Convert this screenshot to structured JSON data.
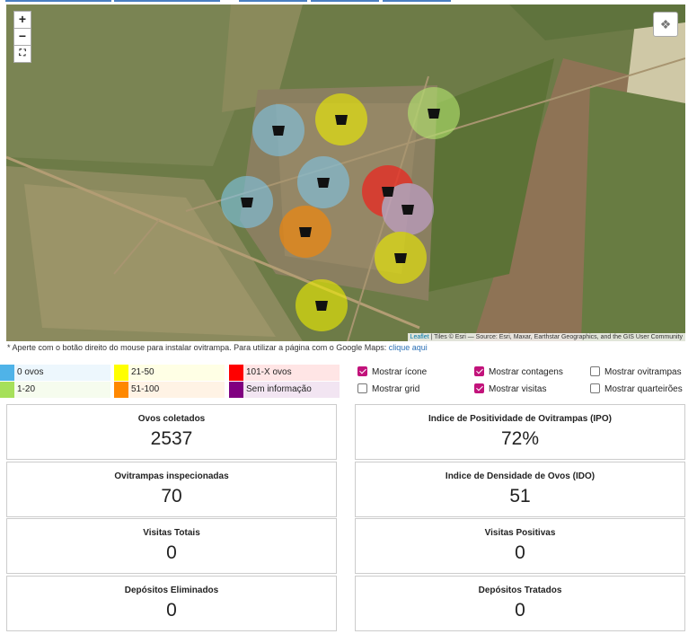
{
  "map": {
    "zoom_in": "+",
    "zoom_out": "−",
    "attribution": {
      "link": "Leaflet",
      "text": "| Tiles © Esri — Source: Esri, Maxar, Earthstar Geographics, and the GIS User Community"
    }
  },
  "note": {
    "text": "* Aperte com o botão direito do mouse para instalar ovitrampa. Para utilizar a página com o Google Maps:",
    "link": "clique aqui"
  },
  "legend": [
    {
      "label": "0 ovos",
      "color": "#4fb3e8"
    },
    {
      "label": "1-20",
      "color": "#a6e05a"
    },
    {
      "label": "21-50",
      "color": "#ffff00"
    },
    {
      "label": "51-100",
      "color": "#ff8800"
    },
    {
      "label": "101-X ovos",
      "color": "#ff0000"
    },
    {
      "label": "Sem informação",
      "color": "#800080"
    }
  ],
  "options": [
    {
      "label": "Mostrar ícone",
      "checked": true
    },
    {
      "label": "Mostrar contagens",
      "checked": true
    },
    {
      "label": "Mostrar ovitrampas",
      "checked": false
    },
    {
      "label": "Mostrar grid",
      "checked": false
    },
    {
      "label": "Mostrar visitas",
      "checked": true
    },
    {
      "label": "Mostrar quarteirões",
      "checked": false
    }
  ],
  "stats": [
    {
      "label": "Ovos coletados",
      "value": "2537"
    },
    {
      "label": "Indice de Positividade de Ovitrampas (IPO)",
      "value": "72%"
    },
    {
      "label": "Ovitrampas inspecionadas",
      "value": "70"
    },
    {
      "label": "Indice de Densidade de Ovos (IDO)",
      "value": "51"
    },
    {
      "label": "Visitas Totais",
      "value": "0"
    },
    {
      "label": "Visitas Positivas",
      "value": "0"
    },
    {
      "label": "Depósitos Eliminados",
      "value": "0"
    },
    {
      "label": "Depósitos Tratados",
      "value": "0"
    }
  ]
}
